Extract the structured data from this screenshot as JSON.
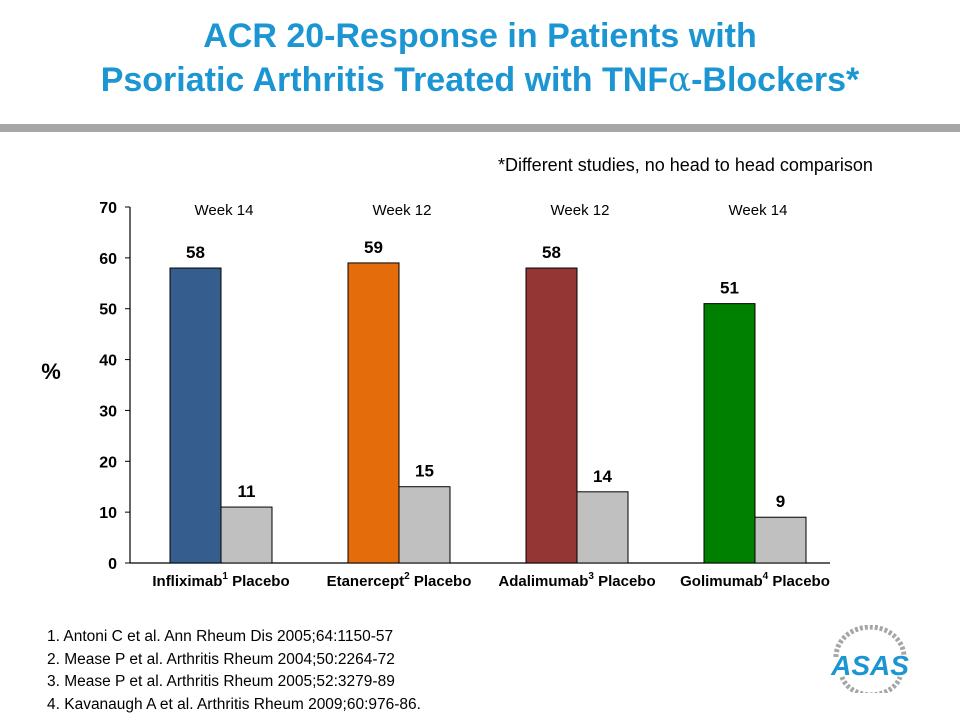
{
  "title": {
    "line1": "ACR 20-Response in Patients with",
    "line2_prefix": "Psoriatic Arthritis Treated with TNF",
    "line2_alpha": "α",
    "line2_suffix": "-Blockers*"
  },
  "note": "*Different studies, no head to head comparison",
  "references": [
    "1. Antoni C et al. Ann Rheum Dis 2005;64:1150-57",
    "2. Mease P et al. Arthritis Rheum 2004;50:2264-72",
    "3. Mease P et al. Arthritis Rheum 2005;52:3279-89",
    "4. Kavanaugh A et al. Arthritis Rheum 2009;60:976-86."
  ],
  "logo": {
    "text": "ASAS",
    "color": "#1b96d2"
  },
  "chart_data": {
    "type": "bar",
    "ylabel": "%",
    "ylim": [
      0,
      70
    ],
    "yticks": [
      0,
      10,
      20,
      30,
      40,
      50,
      60,
      70
    ],
    "grid": false,
    "placebo_label": "Placebo",
    "placebo_color": "#c0c0c0",
    "groups": [
      {
        "drug": "Infliximab",
        "ref": "1",
        "week": "Week 14",
        "drug_value": 58,
        "placebo_value": 11,
        "color": "#355e8f"
      },
      {
        "drug": "Etanercept",
        "ref": "2",
        "week": "Week 12",
        "drug_value": 59,
        "placebo_value": 15,
        "color": "#e46c0a"
      },
      {
        "drug": "Adalimumab",
        "ref": "3",
        "week": "Week 12",
        "drug_value": 58,
        "placebo_value": 14,
        "color": "#943634"
      },
      {
        "drug": "Golimumab",
        "ref": "4",
        "week": "Week 14",
        "drug_value": 51,
        "placebo_value": 9,
        "color": "#008000"
      }
    ]
  }
}
